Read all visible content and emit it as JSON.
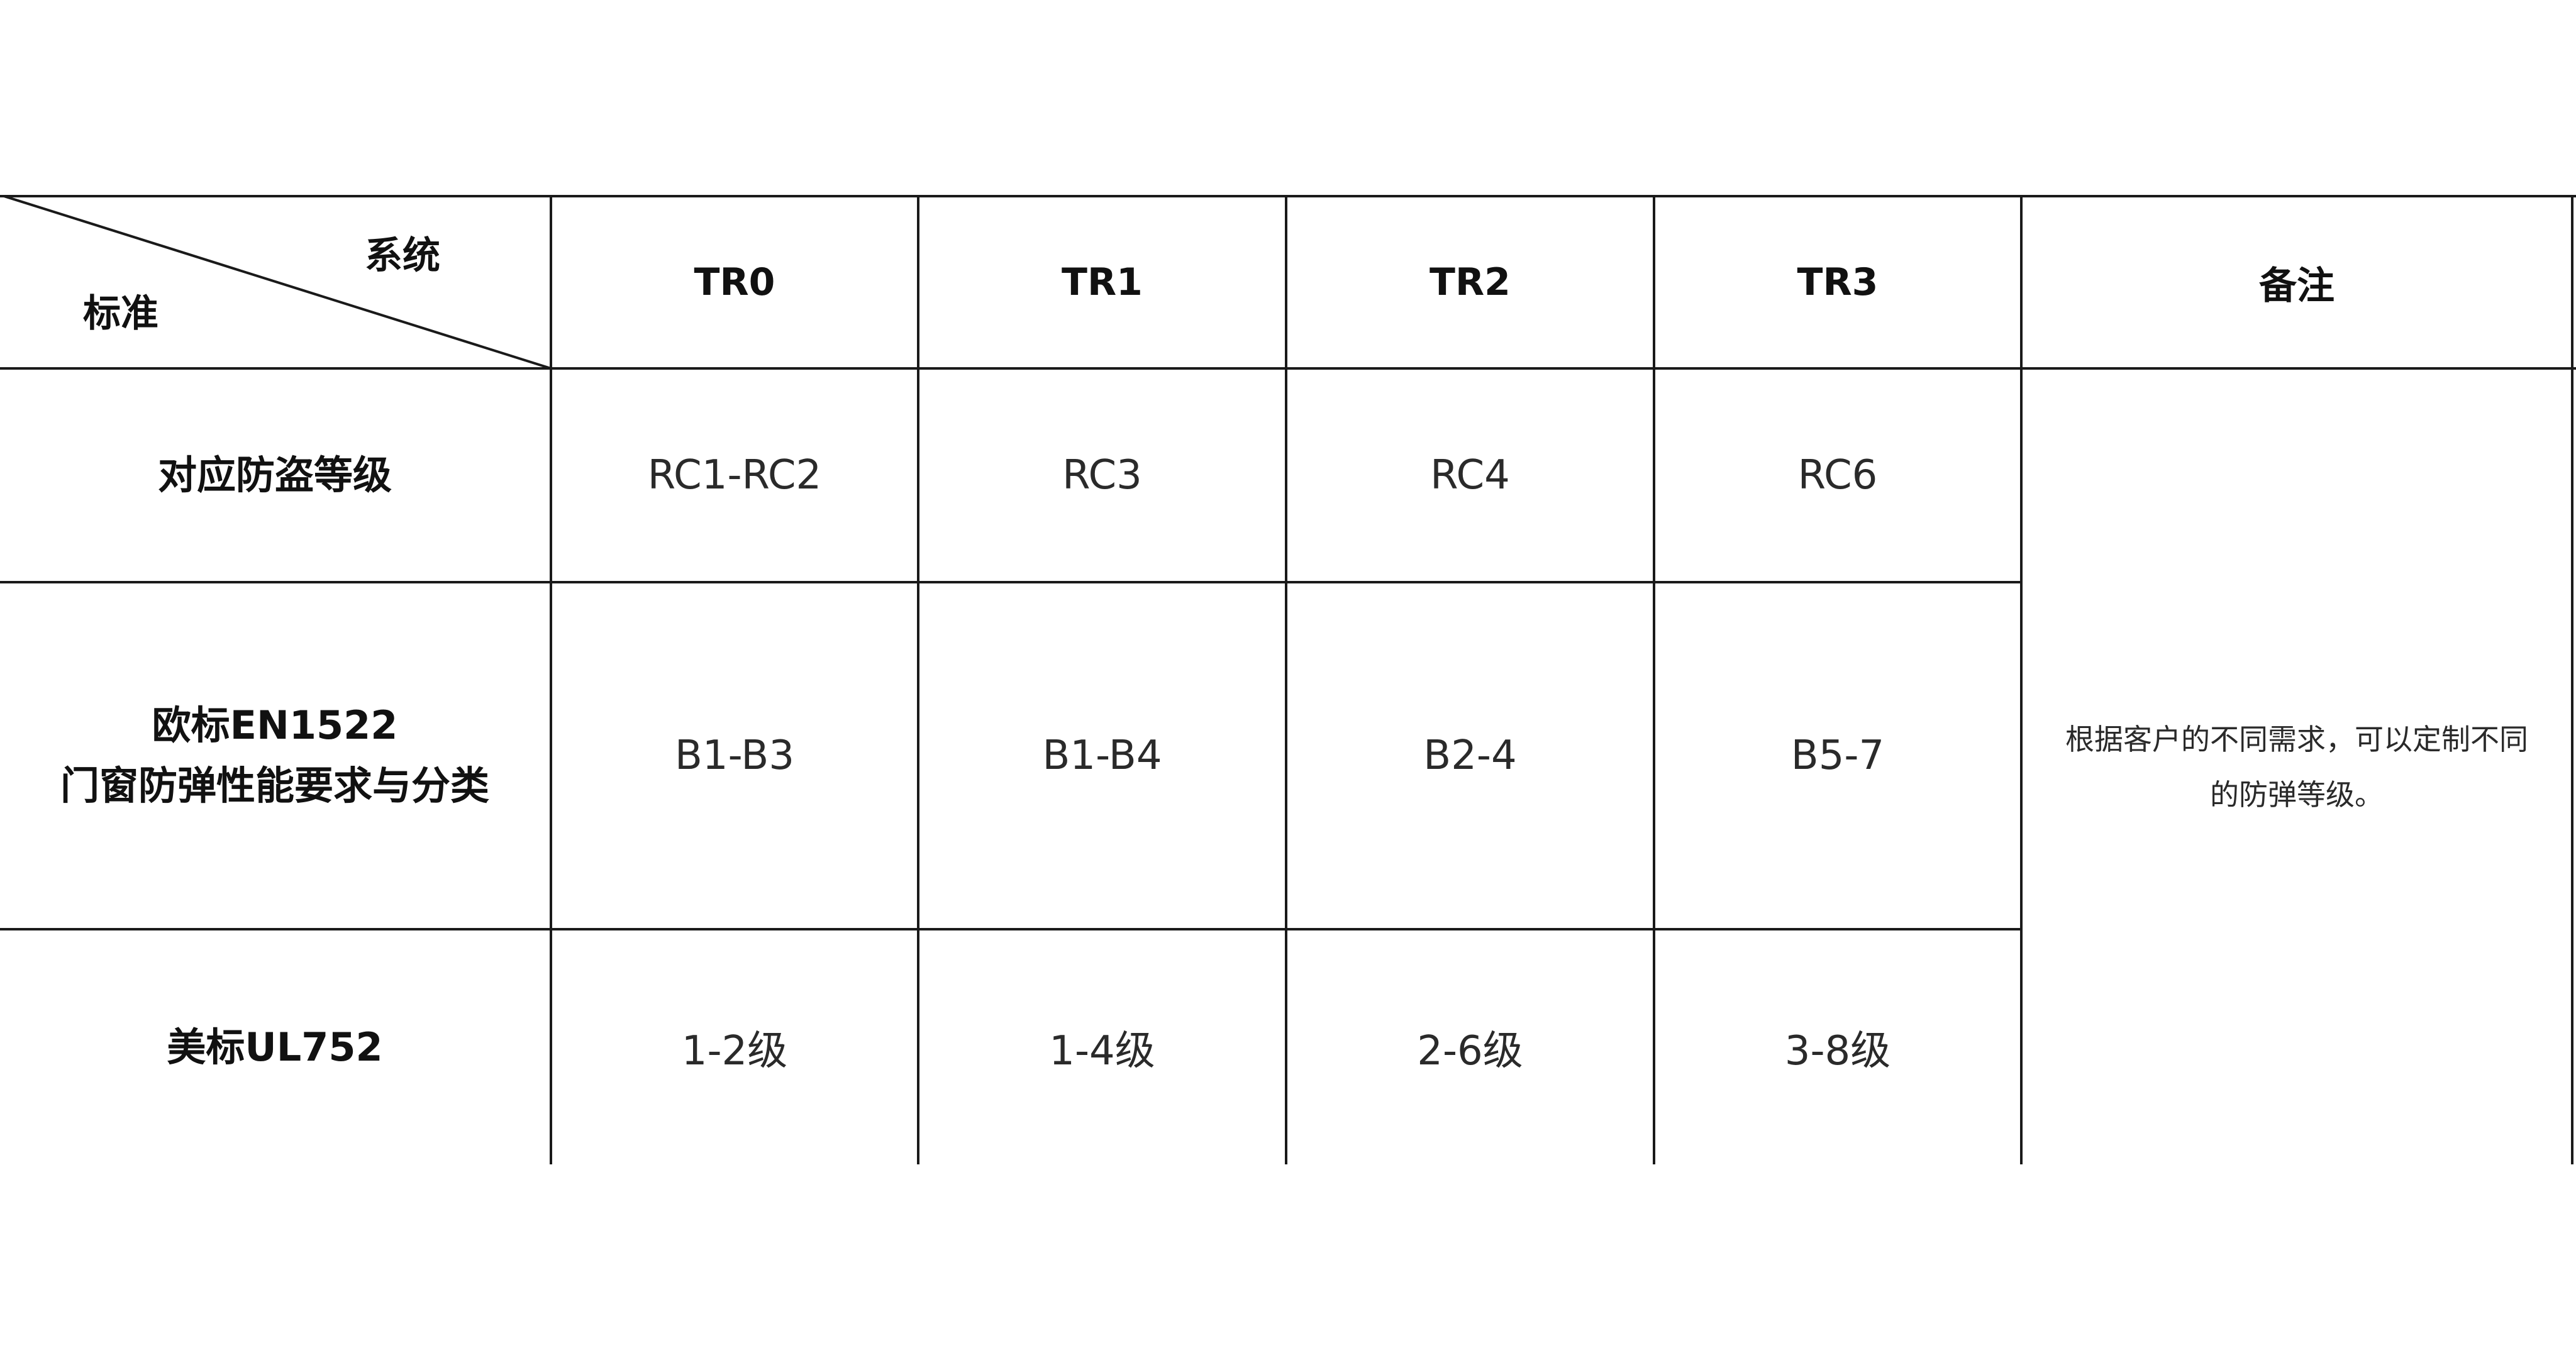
{
  "table": {
    "corner": {
      "top_right_label": "系统",
      "bottom_left_label": "标准"
    },
    "columns": [
      "TR0",
      "TR1",
      "TR2",
      "TR3",
      "备注"
    ],
    "rows": [
      {
        "label_lines": [
          "对应防盗等级"
        ],
        "values": [
          "RC1-RC2",
          "RC3",
          "RC4",
          "RC6"
        ]
      },
      {
        "label_lines": [
          "欧标EN1522",
          "门窗防弹性能要求与分类"
        ],
        "values": [
          "B1-B3",
          "B1-B4",
          "B2-4",
          "B5-7"
        ]
      },
      {
        "label_lines": [
          "美标UL752"
        ],
        "values": [
          "1-2级",
          "1-4级",
          "2-6级",
          "3-8级"
        ]
      }
    ],
    "remark_lines": [
      "根据客户的不同需求，可以定制不同",
      "的防弹等级。"
    ]
  }
}
